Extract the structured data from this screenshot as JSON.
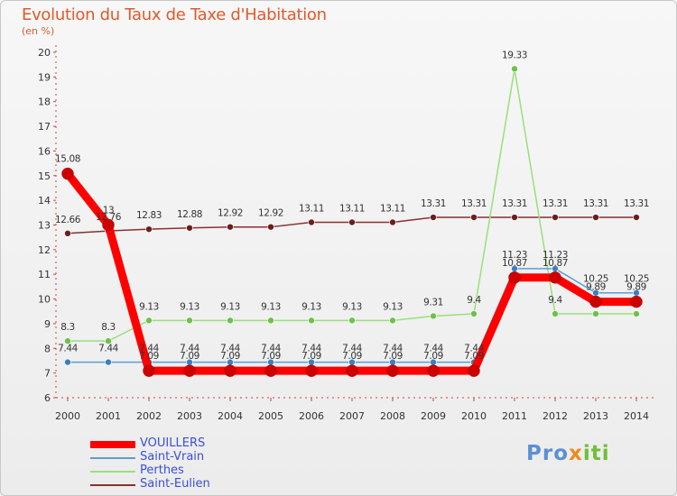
{
  "chart_data": {
    "type": "line",
    "title": "Evolution du Taux de Taxe d'Habitation",
    "subtitle": "(en %)",
    "xlabel": "",
    "ylabel": "",
    "x": [
      "2000",
      "2001",
      "2002",
      "2003",
      "2004",
      "2005",
      "2006",
      "2007",
      "2008",
      "2009",
      "2010",
      "2011",
      "2012",
      "2013",
      "2014"
    ],
    "ylim": [
      6,
      20
    ],
    "yticks": [
      "6",
      "7",
      "8",
      "9",
      "10",
      "11",
      "12",
      "13",
      "14",
      "15",
      "16",
      "17",
      "18",
      "19",
      "20"
    ],
    "grid": false,
    "legend_position": "bottom-left",
    "series": [
      {
        "name": "VOUILLERS",
        "color": "#ff0000",
        "marker": "#cc0000",
        "values": [
          15.08,
          13,
          7.09,
          7.09,
          7.09,
          7.09,
          7.09,
          7.09,
          7.09,
          7.09,
          7.09,
          10.87,
          10.87,
          9.89,
          9.89
        ],
        "labels": [
          "15.08",
          "13",
          "7.09",
          "7.09",
          "7.09",
          "7.09",
          "7.09",
          "7.09",
          "7.09",
          "7.09",
          "7.09",
          "10.87",
          "10.87",
          "9.89",
          "9.89"
        ]
      },
      {
        "name": "Saint-Vrain",
        "color": "#5d9cd6",
        "marker": "#3a7fc4",
        "values": [
          7.44,
          7.44,
          7.44,
          7.44,
          7.44,
          7.44,
          7.44,
          7.44,
          7.44,
          7.44,
          7.44,
          11.23,
          11.23,
          10.25,
          10.25
        ],
        "labels": [
          "7.44",
          "7.44",
          "7.44",
          "7.44",
          "7.44",
          "7.44",
          "7.44",
          "7.44",
          "7.44",
          "7.44",
          "7.44",
          "11.23",
          "11.23",
          "10.25",
          "10.25"
        ]
      },
      {
        "name": "Perthes",
        "color": "#99e07a",
        "marker": "#6cc24a",
        "values": [
          8.3,
          8.3,
          9.13,
          9.13,
          9.13,
          9.13,
          9.13,
          9.13,
          9.13,
          9.31,
          9.4,
          19.33,
          9.4,
          9.4,
          9.4
        ],
        "labels": [
          "8.3",
          "8.3",
          "9.13",
          "9.13",
          "9.13",
          "9.13",
          "9.13",
          "9.13",
          "9.13",
          "9.31",
          "9.4",
          "19.33",
          "9.4",
          "",
          ""
        ]
      },
      {
        "name": "Saint-Eulien",
        "color": "#8a3030",
        "marker": "#6b1e1e",
        "values": [
          12.66,
          12.76,
          12.83,
          12.88,
          12.92,
          12.92,
          13.11,
          13.11,
          13.11,
          13.31,
          13.31,
          13.31,
          13.31,
          13.31,
          13.31
        ],
        "labels": [
          "12.66",
          "12.76",
          "12.83",
          "12.88",
          "12.92",
          "12.92",
          "13.11",
          "13.11",
          "13.11",
          "13.31",
          "13.31",
          "13.31",
          "13.31",
          "13.31",
          "13.31"
        ]
      }
    ]
  },
  "brand": {
    "part1": "Pro",
    "part2": "x",
    "part3": "iti"
  }
}
